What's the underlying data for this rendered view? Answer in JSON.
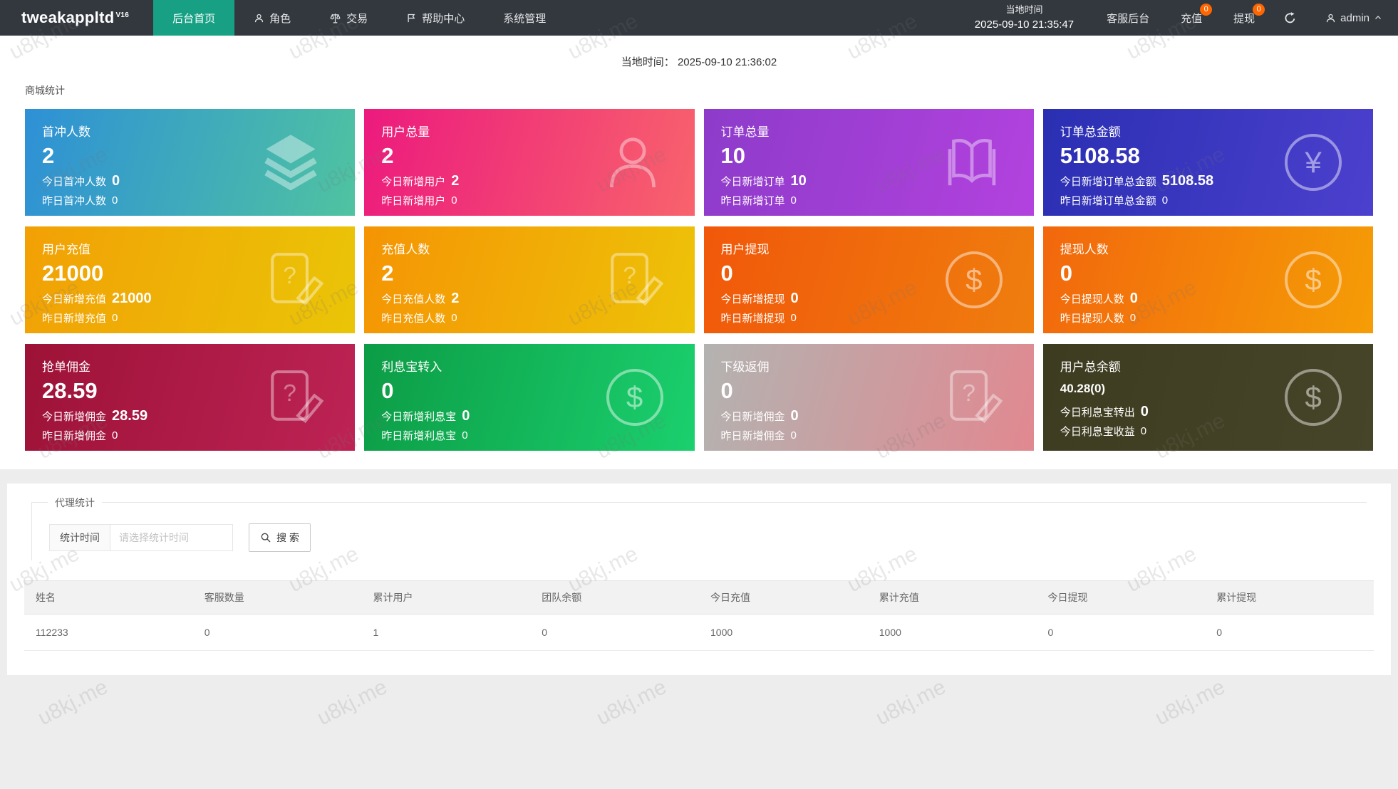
{
  "colors": {
    "accent": "#17a084",
    "badge": "#ff6600"
  },
  "watermark": "u8kj.me",
  "navbar": {
    "logo": "tweakappltd",
    "logo_sup": "V16",
    "items": [
      {
        "label": "后台首页"
      },
      {
        "label": "角色"
      },
      {
        "label": "交易"
      },
      {
        "label": "帮助中心"
      },
      {
        "label": "系统管理"
      }
    ],
    "local_time_label": "当地时间",
    "local_time_value": "2025-09-10 21:35:47",
    "service_label": "客服后台",
    "recharge_label": "充值",
    "recharge_badge": "0",
    "withdraw_label": "提现",
    "withdraw_badge": "0",
    "user_label": "admin"
  },
  "content": {
    "local_time_label": "当地时间：",
    "local_time_value": "2025-09-10 21:36:02",
    "stats_title": "商城统计",
    "cards": [
      {
        "title": "首冲人数",
        "value": "2",
        "today_label": "今日首冲人数",
        "today_value": "0",
        "yesterday_label": "昨日首冲人数",
        "yesterday_value": "0",
        "icon": "layers-icon",
        "color_from": "#2e90d6",
        "color_to": "#4fc3a1"
      },
      {
        "title": "用户总量",
        "value": "2",
        "today_label": "今日新增用户",
        "today_value": "2",
        "yesterday_label": "昨日新增用户",
        "yesterday_value": "0",
        "icon": "user-icon",
        "color_from": "#ec1a7e",
        "color_to": "#f8636c"
      },
      {
        "title": "订单总量",
        "value": "10",
        "today_label": "今日新增订单",
        "today_value": "10",
        "yesterday_label": "昨日新增订单",
        "yesterday_value": "0",
        "icon": "book-icon",
        "color_from": "#8d3bca",
        "color_to": "#b342de"
      },
      {
        "title": "订单总金额",
        "value": "5108.58",
        "today_label": "今日新增订单总金额",
        "today_value": "5108.58",
        "yesterday_label": "昨日新增订单总金额",
        "yesterday_value": "0",
        "icon": "yen-circle-icon",
        "icon_glyph": "¥",
        "color_from": "#2a2fb2",
        "color_to": "#4c40ce"
      },
      {
        "title": "用户充值",
        "value": "21000",
        "today_label": "今日新增充值",
        "today_value": "21000",
        "yesterday_label": "昨日新增充值",
        "yesterday_value": "0",
        "icon": "edit-note-icon",
        "color_from": "#f2a005",
        "color_to": "#eac507"
      },
      {
        "title": "充值人数",
        "value": "2",
        "today_label": "今日充值人数",
        "today_value": "2",
        "yesterday_label": "昨日充值人数",
        "yesterday_value": "0",
        "icon": "edit-note-icon",
        "color_from": "#f59404",
        "color_to": "#edc308"
      },
      {
        "title": "用户提现",
        "value": "0",
        "today_label": "今日新增提现",
        "today_value": "0",
        "yesterday_label": "昨日新增提现",
        "yesterday_value": "0",
        "icon": "dollar-circle-icon",
        "icon_glyph": "$",
        "color_from": "#f1580a",
        "color_to": "#ef7e0e"
      },
      {
        "title": "提现人数",
        "value": "0",
        "today_label": "今日提现人数",
        "today_value": "0",
        "yesterday_label": "昨日提现人数",
        "yesterday_value": "0",
        "icon": "dollar-circle-icon",
        "icon_glyph": "$",
        "color_from": "#f2670d",
        "color_to": "#f59d06"
      },
      {
        "title": "抢单佣金",
        "value": "28.59",
        "today_label": "今日新增佣金",
        "today_value": "28.59",
        "yesterday_label": "昨日新增佣金",
        "yesterday_value": "0",
        "icon": "edit-note-icon",
        "color_from": "#9d1237",
        "color_to": "#bd2355"
      },
      {
        "title": "利息宝转入",
        "value": "0",
        "today_label": "今日新增利息宝",
        "today_value": "0",
        "yesterday_label": "昨日新增利息宝",
        "yesterday_value": "0",
        "icon": "dollar-circle-icon",
        "icon_glyph": "$",
        "color_from": "#0c9c46",
        "color_to": "#1bd06e"
      },
      {
        "title": "下级返佣",
        "value": "0",
        "today_label": "今日新增佣金",
        "today_value": "0",
        "yesterday_label": "昨日新增佣金",
        "yesterday_value": "0",
        "icon": "edit-note-icon",
        "color_from": "#b3b3b1",
        "color_to": "#e18890"
      },
      {
        "title": "用户总余额",
        "value": "40.28(0)",
        "today_label": "今日利息宝转出",
        "today_value": "0",
        "yesterday_label": "今日利息宝收益",
        "yesterday_value": "0",
        "icon": "dollar-circle-icon",
        "icon_glyph": "$",
        "color_from": "#3e3c20",
        "color_to": "#474529"
      }
    ]
  },
  "agent": {
    "panel_title": "代理统计",
    "time_label": "统计时间",
    "time_placeholder": "请选择统计时间",
    "search_label": "搜 索",
    "table": {
      "headers": [
        "姓名",
        "客服数量",
        "累计用户",
        "团队余额",
        "今日充值",
        "累计充值",
        "今日提现",
        "累计提现"
      ],
      "rows": [
        [
          "112233",
          "0",
          "1",
          "0",
          "1000",
          "1000",
          "0",
          "0"
        ]
      ]
    }
  }
}
